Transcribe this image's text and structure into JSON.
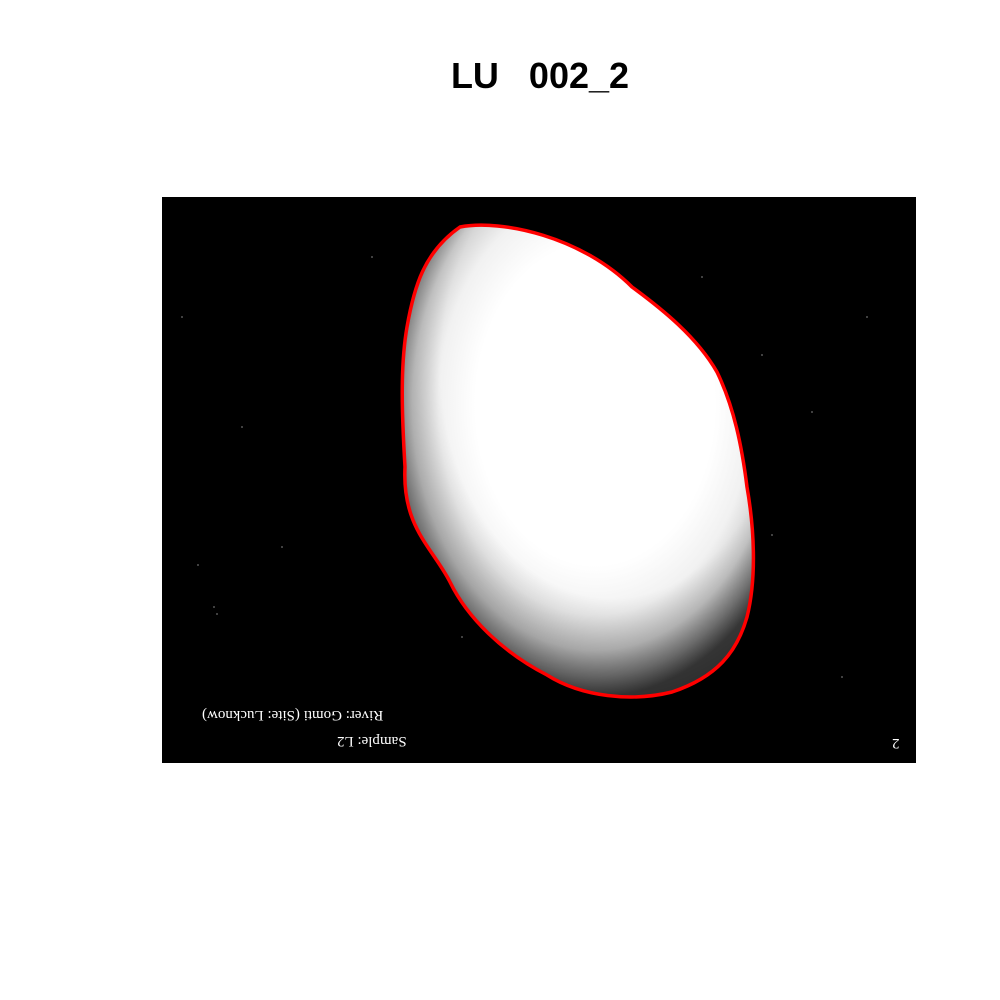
{
  "title": "LU   002_2",
  "image": {
    "background_color": "#000000",
    "outline_color": "#ff0000",
    "text_lines": {
      "line1": "River: Gomti (Site: Lucknow)",
      "line2": "Sample: L2",
      "number": "2"
    }
  }
}
